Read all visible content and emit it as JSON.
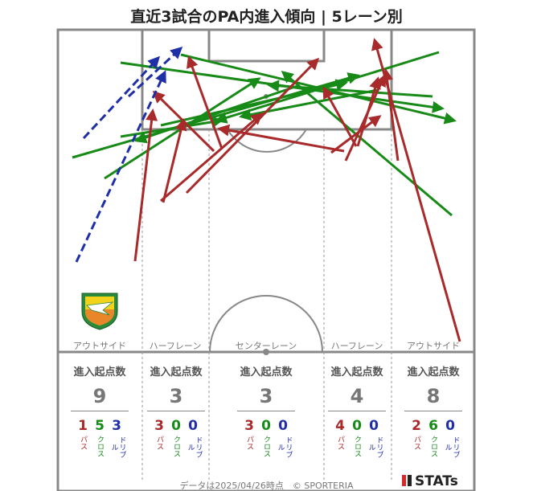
{
  "title": "直近3試合のPA内進入傾向 | 5レーン別",
  "colors": {
    "pass": "#a82a2a",
    "cross": "#178a17",
    "dribble": "#1f2fa8",
    "pitch_line": "#888888"
  },
  "lanes": [
    {
      "label": "アウトサイド",
      "head": "進入起点数",
      "total": "9",
      "pass": "1",
      "cross": "5",
      "dribble": "3"
    },
    {
      "label": "ハーフレーン",
      "head": "進入起点数",
      "total": "3",
      "pass": "3",
      "cross": "0",
      "dribble": "0"
    },
    {
      "label": "センターレーン",
      "head": "進入起点数",
      "total": "3",
      "pass": "3",
      "cross": "0",
      "dribble": "0"
    },
    {
      "label": "ハーフレーン",
      "head": "進入起点数",
      "total": "4",
      "pass": "4",
      "cross": "0",
      "dribble": "0"
    },
    {
      "label": "アウトサイド",
      "head": "進入起点数",
      "total": "8",
      "pass": "2",
      "cross": "6",
      "dribble": "0"
    }
  ],
  "type_labels": {
    "pass": "パス",
    "cross": "クロス",
    "dribble": "ドリブル"
  },
  "footer": "データは2025/04/26時点　© SPORTERIA",
  "brand": "STATs"
}
